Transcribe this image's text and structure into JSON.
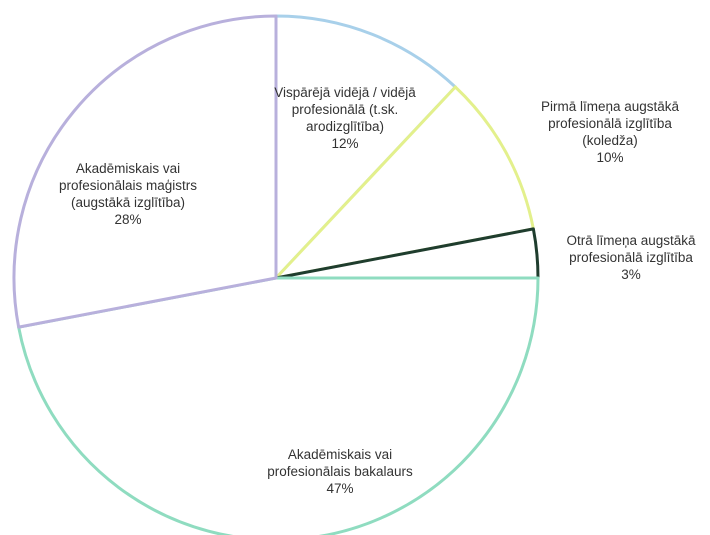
{
  "chart_data": {
    "type": "pie",
    "slices": [
      {
        "label": [
          "Vispārējā vidējā / vidējā",
          "profesionālā (t.sk.",
          "arodizglītība)"
        ],
        "value": 12,
        "value_label": "12%",
        "fill": "#ffffff",
        "stroke": "#a8d0ea"
      },
      {
        "label": [
          "Pirmā līmeņa augstākā",
          "profesionālā izglītība",
          "(koledža)"
        ],
        "value": 10,
        "value_label": "10%",
        "fill": "#ffffff",
        "stroke": "#e3f08c"
      },
      {
        "label": [
          "Otrā līmeņa augstākā",
          "profesionālā izglītība"
        ],
        "value": 3,
        "value_label": "3%",
        "fill": "#ffffff",
        "stroke": "#1f3d2e"
      },
      {
        "label": [
          "Akadēmiskais vai",
          "profesionālais bakalaurs"
        ],
        "value": 47,
        "value_label": "47%",
        "fill": "#ffffff",
        "stroke": "#8fdcc0"
      },
      {
        "label": [
          "Akadēmiskais vai",
          "profesionālais maģistrs",
          "(augstākā izglītība)"
        ],
        "value": 28,
        "value_label": "28%",
        "fill": "#ffffff",
        "stroke": "#b8b0dc"
      }
    ],
    "start_angle_deg": 0,
    "direction": "clockwise",
    "legend": "none"
  }
}
